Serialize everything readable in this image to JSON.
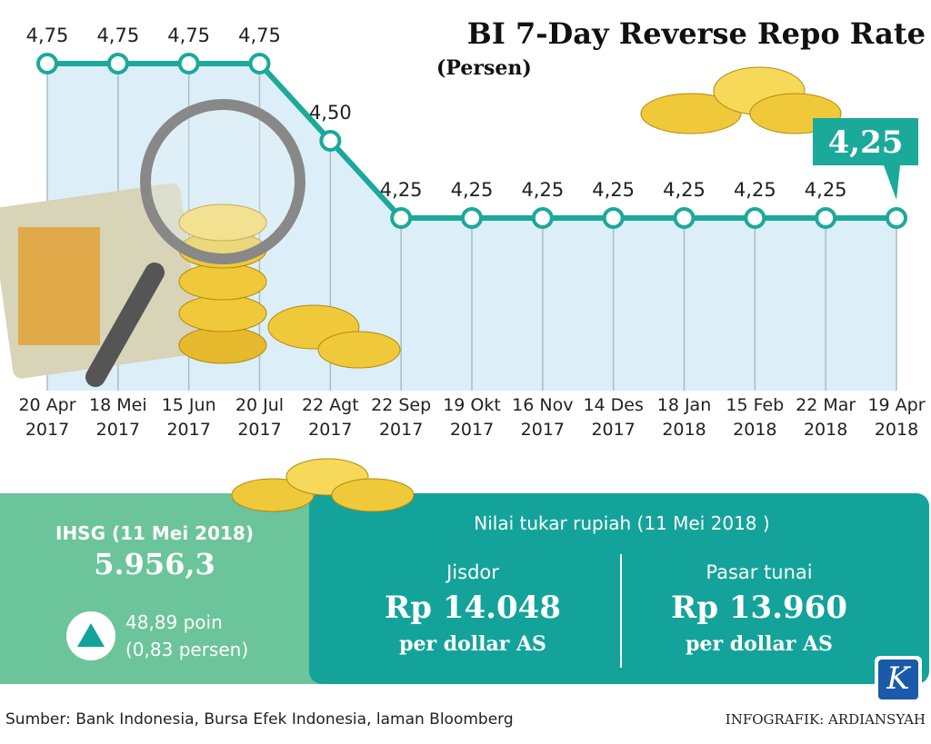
{
  "chart_data": {
    "type": "line",
    "title": "BI 7-Day Reverse Repo Rate",
    "subtitle": "(Persen)",
    "categories": [
      "20 Apr 2017",
      "18 Mei 2017",
      "15 Jun 2017",
      "20 Jul 2017",
      "22 Agt 2017",
      "22 Sep 2017",
      "19 Okt 2017",
      "16 Nov 2017",
      "14 Des 2017",
      "18 Jan 2018",
      "15 Feb 2018",
      "22 Mar 2018",
      "19 Apr 2018"
    ],
    "values": [
      4.75,
      4.75,
      4.75,
      4.75,
      4.5,
      4.25,
      4.25,
      4.25,
      4.25,
      4.25,
      4.25,
      4.25,
      4.25
    ],
    "value_labels": [
      "4,75",
      "4,75",
      "4,75",
      "4,75",
      "4,50",
      "4,25",
      "4,25",
      "4,25",
      "4,25",
      "4,25",
      "4,25",
      "4,25",
      "4,25"
    ],
    "color": "#1ba99a"
  },
  "panel": {
    "ihsg": {
      "label": "IHSG (11 Mei 2018)",
      "value": "5.956,3",
      "change": "48,89 poin",
      "percent": "(0,83 persen)"
    },
    "exchange": {
      "title": "Nilai tukar rupiah (11 Mei 2018 )",
      "jisdor": {
        "label": "Jisdor",
        "value": "Rp 14.048",
        "unit": "per dollar AS"
      },
      "cash": {
        "label": "Pasar tunai",
        "value": "Rp 13.960",
        "unit": "per dollar AS"
      }
    }
  },
  "footer": {
    "source": "Sumber: Bank Indonesia, Bursa Efek Indonesia, laman Bloomberg",
    "credit": "INFOGRAFIK: ARDIANSYAH",
    "logo": "K"
  }
}
